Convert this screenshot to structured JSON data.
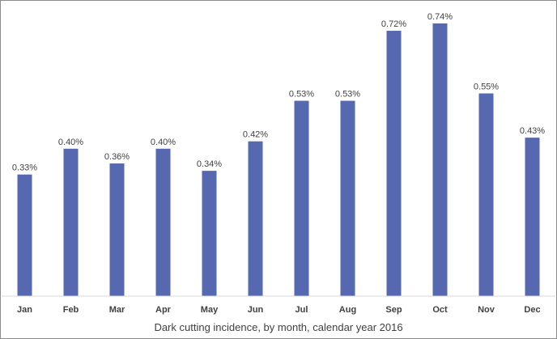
{
  "chart_data": {
    "type": "bar",
    "title": "Dark cutting incidence, by month, calendar year 2016",
    "xlabel": "",
    "ylabel": "",
    "categories": [
      "Jan",
      "Feb",
      "Mar",
      "Apr",
      "May",
      "Jun",
      "Jul",
      "Aug",
      "Sep",
      "Oct",
      "Nov",
      "Dec"
    ],
    "values": [
      0.33,
      0.4,
      0.36,
      0.4,
      0.34,
      0.42,
      0.53,
      0.53,
      0.72,
      0.74,
      0.55,
      0.43
    ],
    "data_labels": [
      "0.33%",
      "0.40%",
      "0.36%",
      "0.40%",
      "0.34%",
      "0.42%",
      "0.53%",
      "0.53%",
      "0.72%",
      "0.74%",
      "0.55%",
      "0.43%"
    ],
    "unit": "%",
    "ylim": [
      0,
      0.8
    ],
    "grid": false,
    "legend": "none",
    "bar_color": "#5568b0"
  }
}
